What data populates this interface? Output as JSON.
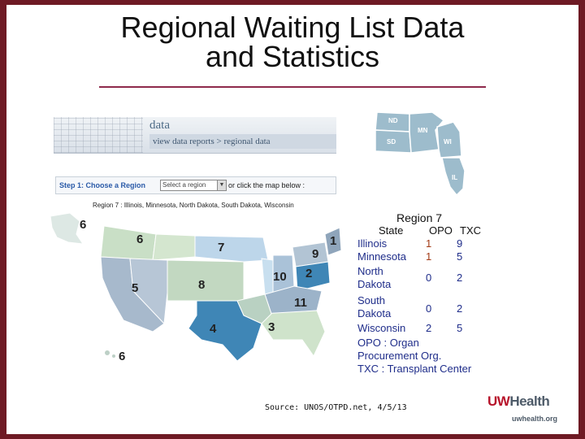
{
  "slide": {
    "title_line1": "Regional Waiting List Data",
    "title_line2": "and Statistics"
  },
  "web_header": {
    "section": "data",
    "breadcrumb": "view data reports > regional data"
  },
  "step_bar": {
    "step_label": "Step 1:  Choose a  Region",
    "select_value": "Select a region",
    "or_text": "or click the map below :"
  },
  "region_line": "Region 7 : Illinois, Minnesota, North Dakota, South Dakota, Wisconsin",
  "map": {
    "region_numbers": [
      "6",
      "6",
      "7",
      "9",
      "1",
      "2",
      "5",
      "8",
      "10",
      "11",
      "4",
      "3",
      "6"
    ]
  },
  "inset_map": {
    "states": [
      "ND",
      "MN",
      "SD",
      "WI",
      "IL"
    ]
  },
  "region_table": {
    "title": "Region 7",
    "headers": {
      "state": "State",
      "opo": "OPO",
      "txc": "TXC"
    },
    "rows": [
      {
        "state_l1": "Illinois",
        "state_l2": "",
        "opo": "1",
        "txc": "9"
      },
      {
        "state_l1": "Minnesota",
        "state_l2": "",
        "opo": "1",
        "txc": "5"
      },
      {
        "state_l1": "North",
        "state_l2": "Dakota",
        "opo": "0",
        "txc": "2"
      },
      {
        "state_l1": "South",
        "state_l2": "Dakota",
        "opo": "0",
        "txc": "2"
      },
      {
        "state_l1": "Wisconsin",
        "state_l2": "",
        "opo": "2",
        "txc": "5"
      }
    ],
    "note_opo_l1": "OPO : Organ",
    "note_opo_l2": "Procurement Org.",
    "note_txc": "TXC : Transplant Center"
  },
  "footer": {
    "source": "Source: UNOS/OTPD.net, 4/5/13",
    "logo_uw": "UW",
    "logo_health": "Health",
    "logo_url": "uwhealth.org"
  },
  "colors": {
    "border": "#6e1a24",
    "rule": "#8e2a4c",
    "region_blue": "#3f86b6",
    "region_green": "#cfe3cb",
    "table_text": "#1f2d8a",
    "opo_highlight": "#a33b16",
    "uw_red": "#b7142b"
  }
}
